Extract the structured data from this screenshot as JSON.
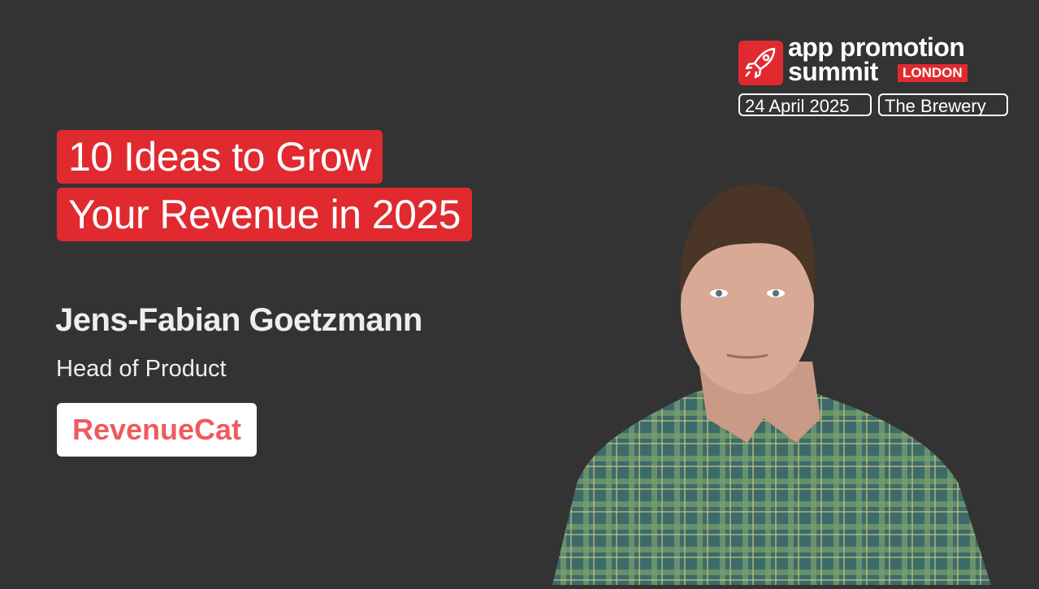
{
  "event": {
    "logo_line1": "app promotion",
    "logo_line2": "summit",
    "city_badge": "LONDON",
    "date": "24 April 2025",
    "venue": "The Brewery",
    "logo_color": "#e02a30"
  },
  "talk": {
    "title_line1": "10 Ideas to Grow",
    "title_line2": "Your Revenue in 2025"
  },
  "speaker": {
    "name": "Jens-Fabian Goetzmann",
    "role": "Head of Product",
    "company_logo_text": "RevenueCat",
    "company_color": "#ef5a5e"
  }
}
